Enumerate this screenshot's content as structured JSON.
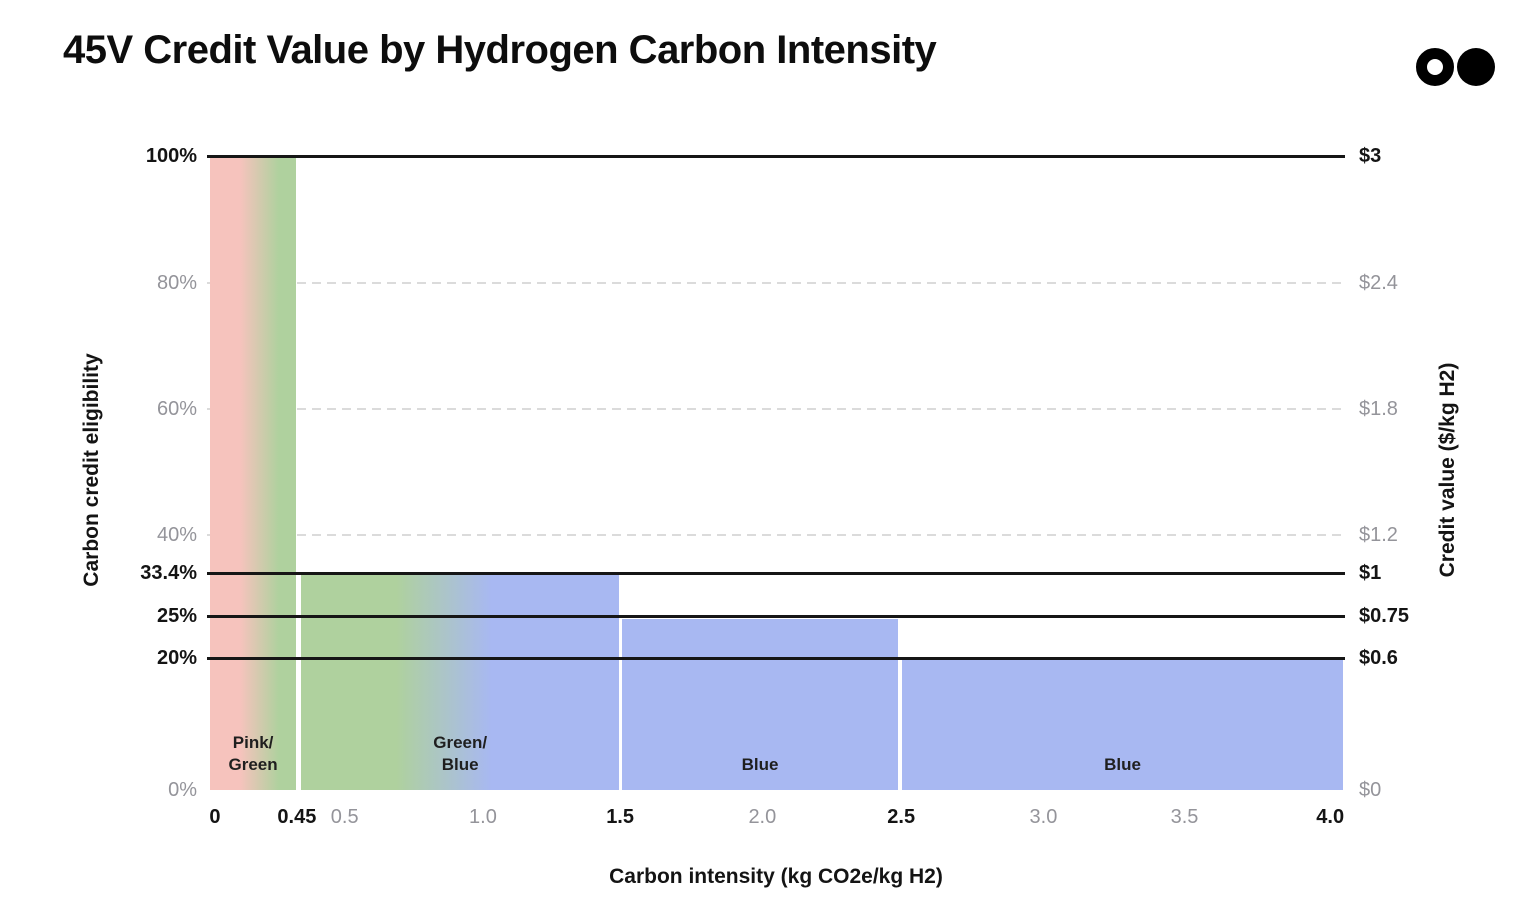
{
  "header": {
    "title": "45V Credit Value by Hydrogen Carbon Intensity"
  },
  "logo": {
    "description": "two-circles-logo",
    "left_circle": "outlined",
    "right_circle": "filled",
    "color": "#000000"
  },
  "colors": {
    "pink": "#f6c3bd",
    "green": "#afd19e",
    "blue": "#a8b8f2",
    "solid_line": "#161616",
    "dashed_line": "#dbdbdb",
    "tick_gray": "#94949a",
    "text": "#141414",
    "background": "#ffffff"
  },
  "chart_data": {
    "type": "bar",
    "title": "45V Credit Value by Hydrogen Carbon Intensity",
    "xlabel": "Carbon intensity (kg CO2e/kg H2)",
    "ylabel_left": "Carbon credit eligibility",
    "ylabel_right": "Credit value ($/kg H2)",
    "xlim": [
      0,
      4.0
    ],
    "ylim_left_pct": [
      0,
      100
    ],
    "ylim_right_usd": [
      0,
      3
    ],
    "grid": "dashed horizontal at 80%, 60%, 40%; solid reference lines at 100%, 33.4%, 25%, 20%",
    "legend_position": "none",
    "bars": [
      {
        "label_lines": [
          "Pink/",
          "Green"
        ],
        "hydrogen_type": "Pink/Green",
        "x_start": 0,
        "x_end": 0.45,
        "eligibility_pct": 100,
        "credit_value_usd_per_kg": 3.0,
        "fill": "pinkGreen",
        "x0": 0.003,
        "x1": 0.078,
        "top": 0.003
      },
      {
        "label_lines": [
          "Green/",
          "Blue"
        ],
        "hydrogen_type": "Green/Blue",
        "x_start": 0.45,
        "x_end": 1.5,
        "eligibility_pct": 33.4,
        "credit_value_usd_per_kg": 1.0,
        "fill": "greenBlue",
        "x0": 0.083,
        "x1": 0.362,
        "top": 0.661
      },
      {
        "label_lines": [
          "Blue"
        ],
        "hydrogen_type": "Blue",
        "x_start": 1.5,
        "x_end": 2.5,
        "eligibility_pct": 25,
        "credit_value_usd_per_kg": 0.75,
        "fill": "blue",
        "x0": 0.365,
        "x1": 0.607,
        "top": 0.73
      },
      {
        "label_lines": [
          "Blue"
        ],
        "hydrogen_type": "Blue",
        "x_start": 2.5,
        "x_end": 4.0,
        "eligibility_pct": 20,
        "credit_value_usd_per_kg": 0.6,
        "fill": "blue",
        "x0": 0.611,
        "x1": 0.998,
        "top": 0.795
      }
    ],
    "y_ticks": [
      {
        "left": "100%",
        "right": "$3",
        "value_pct": 100,
        "value_usd": 3.0,
        "pos": 0.0,
        "bold": true,
        "line": "solid"
      },
      {
        "left": "80%",
        "right": "$2.4",
        "value_pct": 80,
        "value_usd": 2.4,
        "pos": 0.2,
        "bold": false,
        "line": "dashed"
      },
      {
        "left": "60%",
        "right": "$1.8",
        "value_pct": 60,
        "value_usd": 1.8,
        "pos": 0.399,
        "bold": false,
        "line": "dashed"
      },
      {
        "left": "40%",
        "right": "$1.2",
        "value_pct": 40,
        "value_usd": 1.2,
        "pos": 0.598,
        "bold": false,
        "line": "dashed"
      },
      {
        "left": "33.4%",
        "right": "$1",
        "value_pct": 33.4,
        "value_usd": 1.0,
        "pos": 0.658,
        "bold": true,
        "line": "solid"
      },
      {
        "left": "25%",
        "right": "$0.75",
        "value_pct": 25,
        "value_usd": 0.75,
        "pos": 0.726,
        "bold": true,
        "line": "solid"
      },
      {
        "left": "20%",
        "right": "$0.6",
        "value_pct": 20,
        "value_usd": 0.6,
        "pos": 0.792,
        "bold": true,
        "line": "solid"
      },
      {
        "left": "0%",
        "right": "$0",
        "value_pct": 0,
        "value_usd": 0.0,
        "pos": 1.0,
        "bold": false,
        "line": "none"
      }
    ],
    "x_ticks": [
      {
        "label": "0",
        "value": 0,
        "pos": 0.007,
        "bold": true
      },
      {
        "label": "0.45",
        "value": 0.45,
        "pos": 0.079,
        "bold": true
      },
      {
        "label": "0.5",
        "value": 0.5,
        "pos": 0.121,
        "bold": false
      },
      {
        "label": "1.0",
        "value": 1.0,
        "pos": 0.2425,
        "bold": false
      },
      {
        "label": "1.5",
        "value": 1.5,
        "pos": 0.363,
        "bold": true
      },
      {
        "label": "2.0",
        "value": 2.0,
        "pos": 0.488,
        "bold": false
      },
      {
        "label": "2.5",
        "value": 2.5,
        "pos": 0.61,
        "bold": true
      },
      {
        "label": "3.0",
        "value": 3.0,
        "pos": 0.735,
        "bold": false
      },
      {
        "label": "3.5",
        "value": 3.5,
        "pos": 0.859,
        "bold": false
      },
      {
        "label": "4.0",
        "value": 4.0,
        "pos": 0.987,
        "bold": true
      }
    ]
  }
}
